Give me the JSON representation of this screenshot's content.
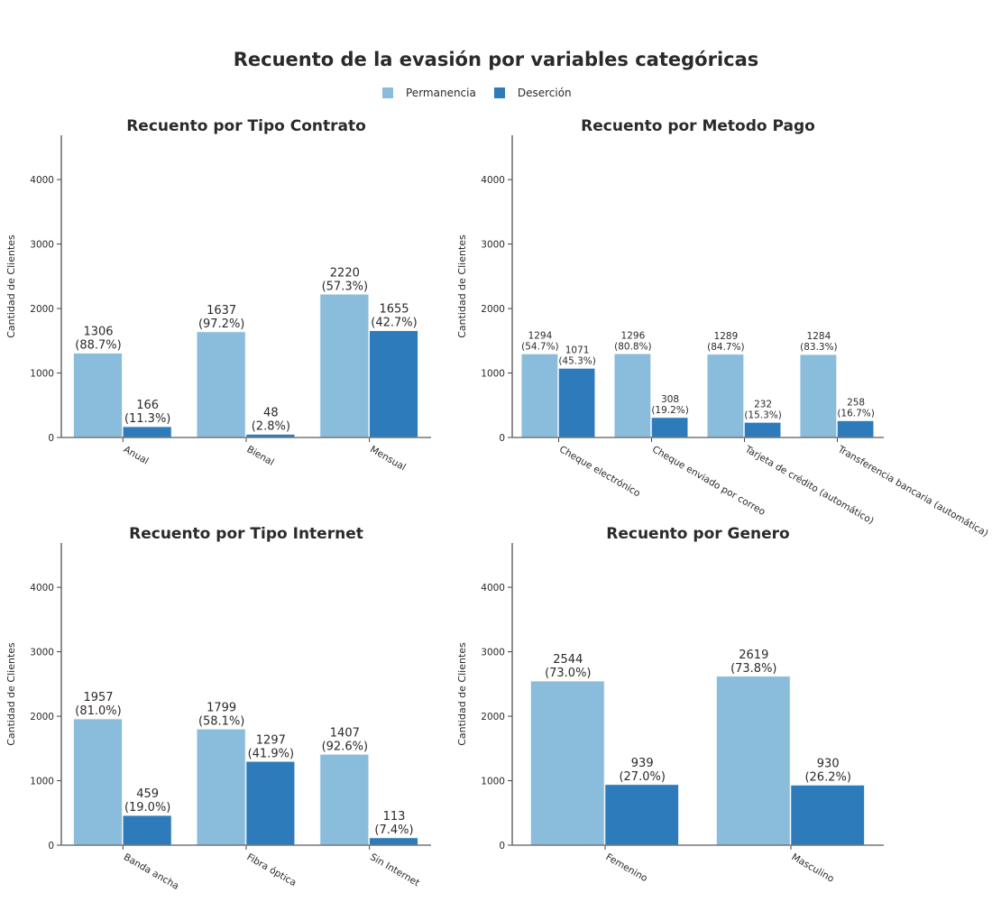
{
  "chart_data": {
    "title": "Recuento de la evasión por variables categóricas",
    "legend": {
      "placement": "top-center",
      "entries": [
        "Permanencia",
        "Deserción"
      ]
    },
    "colors": {
      "Permanencia": "#89bddb",
      "Deserción": "#2d7bba"
    },
    "ylim": [
      0,
      4687
    ],
    "yticks": [
      0,
      1000,
      2000,
      3000,
      4000
    ],
    "subplots": [
      {
        "type": "bar",
        "title": "Recuento por Tipo Contrato",
        "ylabel": "Cantidad de Clientes",
        "categories": [
          "Anual",
          "Bienal",
          "Mensual"
        ],
        "series": [
          {
            "name": "Permanencia",
            "values": [
              1306,
              1637,
              2220
            ],
            "labels": [
              "(88.7%)",
              "(97.2%)",
              "(57.3%)"
            ]
          },
          {
            "name": "Deserción",
            "values": [
              166,
              48,
              1655
            ],
            "labels": [
              "(11.3%)",
              "(2.8%)",
              "(42.7%)"
            ]
          }
        ]
      },
      {
        "type": "bar",
        "title": "Recuento por Metodo Pago",
        "ylabel": "Cantidad de Clientes",
        "categories": [
          "Cheque electrónico",
          "Cheque enviado por correo",
          "Tarjeta de crédito (automático)",
          "Transferencia bancaria (automática)"
        ],
        "series": [
          {
            "name": "Permanencia",
            "values": [
              1294,
              1296,
              1289,
              1284
            ],
            "labels": [
              "(54.7%)",
              "(80.8%)",
              "(84.7%)",
              "(83.3%)"
            ]
          },
          {
            "name": "Deserción",
            "values": [
              1071,
              308,
              232,
              258
            ],
            "labels": [
              "(45.3%)",
              "(19.2%)",
              "(15.3%)",
              "(16.7%)"
            ]
          }
        ]
      },
      {
        "type": "bar",
        "title": "Recuento por Tipo Internet",
        "ylabel": "Cantidad de Clientes",
        "categories": [
          "Banda ancha",
          "Fibra óptica",
          "Sin Internet"
        ],
        "series": [
          {
            "name": "Permanencia",
            "values": [
              1957,
              1799,
              1407
            ],
            "labels": [
              "(81.0%)",
              "(58.1%)",
              "(92.6%)"
            ]
          },
          {
            "name": "Deserción",
            "values": [
              459,
              1297,
              113
            ],
            "labels": [
              "(19.0%)",
              "(41.9%)",
              "(7.4%)"
            ]
          }
        ]
      },
      {
        "type": "bar",
        "title": "Recuento por Genero",
        "ylabel": "Cantidad de Clientes",
        "categories": [
          "Femenino",
          "Masculino"
        ],
        "series": [
          {
            "name": "Permanencia",
            "values": [
              2544,
              2619
            ],
            "labels": [
              "(73.0%)",
              "(73.8%)"
            ]
          },
          {
            "name": "Deserción",
            "values": [
              939,
              930
            ],
            "labels": [
              "(27.0%)",
              "(26.2%)"
            ]
          }
        ]
      }
    ]
  }
}
